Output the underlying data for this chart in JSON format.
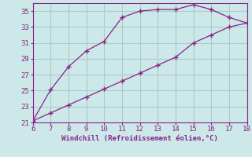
{
  "upper_x": [
    6,
    7,
    8,
    9,
    10,
    11,
    12,
    13,
    14,
    15,
    16,
    17,
    18
  ],
  "upper_y": [
    21.2,
    25.1,
    28.0,
    30.0,
    31.2,
    34.2,
    35.0,
    35.2,
    35.2,
    35.8,
    35.2,
    34.2,
    33.5
  ],
  "lower_x": [
    6,
    7,
    8,
    9,
    10,
    11,
    12,
    13,
    14,
    15,
    16,
    17,
    18
  ],
  "lower_y": [
    21.2,
    22.2,
    23.2,
    24.2,
    25.2,
    26.2,
    27.2,
    28.2,
    29.2,
    31.0,
    32.0,
    33.0,
    33.5
  ],
  "line_color": "#882288",
  "bg_color": "#cce8e8",
  "grid_color": "#aacccc",
  "xlabel": "Windchill (Refroidissement éolien,°C)",
  "xlim": [
    6,
    18
  ],
  "ylim": [
    21,
    36
  ],
  "xticks": [
    6,
    7,
    8,
    9,
    10,
    11,
    12,
    13,
    14,
    15,
    16,
    17,
    18
  ],
  "yticks": [
    21,
    23,
    25,
    27,
    29,
    31,
    33,
    35
  ],
  "tick_color": "#882288",
  "label_color": "#882288",
  "marker": "+"
}
